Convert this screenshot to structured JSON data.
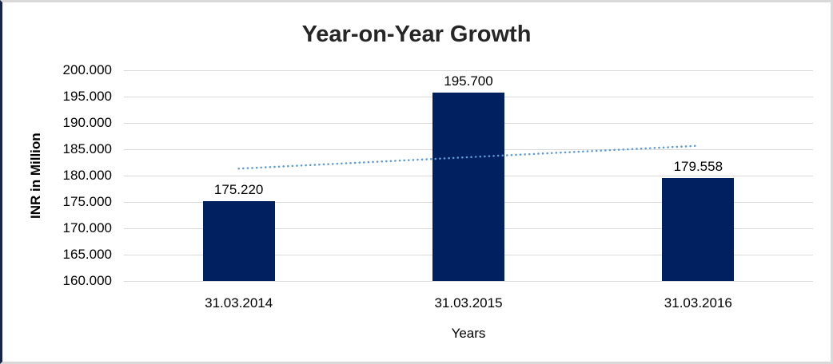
{
  "chart_data": {
    "type": "bar",
    "title": "Year-on-Year Growth",
    "xlabel": "Years",
    "ylabel": "INR in Million",
    "categories": [
      "31.03.2014",
      "31.03.2015",
      "31.03.2016"
    ],
    "values": [
      175.22,
      195.7,
      179.558
    ],
    "data_labels": [
      "175.220",
      "195.700",
      "179.558"
    ],
    "ylim": [
      160,
      200
    ],
    "y_tick_step": 5,
    "y_tick_labels": [
      "200.000",
      "195.000",
      "190.000",
      "185.000",
      "180.000",
      "175.000",
      "170.000",
      "165.000",
      "160.000"
    ],
    "grid": true,
    "legend": false,
    "trendline": {
      "type": "linear",
      "style": "dotted"
    },
    "colors": {
      "bar": "#002060",
      "trendline": "#5b9bd5",
      "gridline": "#d9d9d9",
      "title_text": "#262626",
      "axis_text": "#000000",
      "frame_border": "#d9d9d9",
      "left_edge": "#16234a"
    }
  }
}
